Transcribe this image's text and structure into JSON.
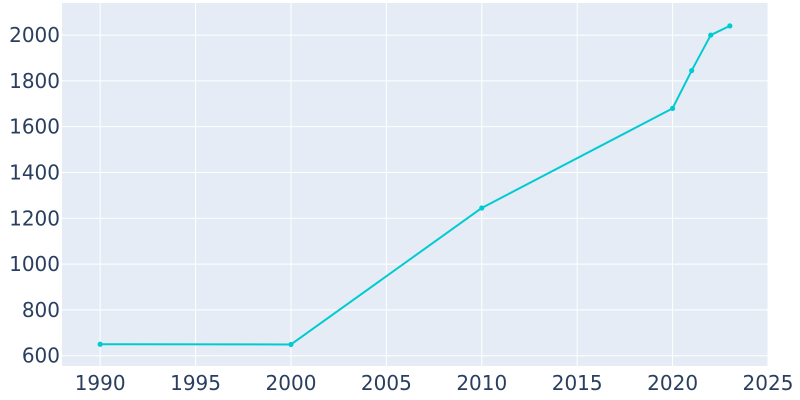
{
  "chart_data": {
    "type": "line",
    "title": "",
    "xlabel": "",
    "ylabel": "",
    "x": [
      1990,
      2000,
      2010,
      2020,
      2021,
      2022,
      2023
    ],
    "series": [
      {
        "values": [
          650,
          649,
          1245,
          1680,
          1845,
          2000,
          2040
        ]
      }
    ],
    "xlim": [
      1988,
      2025
    ],
    "ylim": [
      555,
      2140
    ],
    "xticks": [
      1990,
      1995,
      2000,
      2005,
      2010,
      2015,
      2020,
      2025
    ],
    "yticks": [
      600,
      800,
      1000,
      1200,
      1400,
      1600,
      1800,
      2000
    ],
    "grid": true,
    "legend": "none",
    "colors": {
      "line": "#00cbd1",
      "plot_background": "#e5ecf6",
      "grid": "#ffffff",
      "tick_text": "#2a3f5f"
    }
  }
}
